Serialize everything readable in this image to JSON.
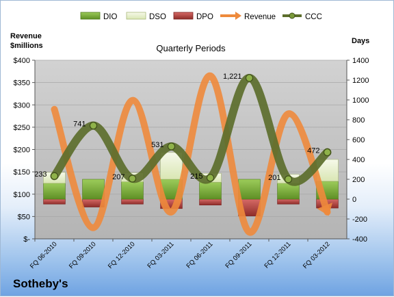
{
  "chart_data": {
    "type": "combo-bar-line",
    "title": "Quarterly Periods",
    "company": "Sotheby's",
    "left_axis_label_line1": "Revenue",
    "left_axis_label_line2": "$millions",
    "right_axis_label": "Days",
    "left_ylim": [
      0,
      400
    ],
    "left_ticks": [
      "$-",
      "$50",
      "$100",
      "$150",
      "$200",
      "$250",
      "$300",
      "$350",
      "$400"
    ],
    "right_ylim": [
      -400,
      1400
    ],
    "right_ticks": [
      "-400",
      "-200",
      "0",
      "200",
      "400",
      "600",
      "800",
      "1000",
      "1200",
      "1400"
    ],
    "categories": [
      "FQ 06-2010",
      "FQ 09-2010",
      "FQ 12-2010",
      "FQ 03-2011",
      "FQ 06-2011",
      "FQ 09-2011",
      "FQ 12-2011",
      "FQ 03-2012"
    ],
    "legend": [
      "DIO",
      "DSO",
      "DPO",
      "Revenue",
      "CCC"
    ],
    "series": {
      "DIO": [
        160,
        200,
        175,
        200,
        170,
        200,
        160,
        180
      ],
      "DSO": [
        110,
        0,
        90,
        270,
        90,
        0,
        90,
        220
      ],
      "DPO": [
        -50,
        -80,
        -50,
        -95,
        -60,
        -170,
        -50,
        -90
      ],
      "Revenue": [
        290,
        25,
        310,
        60,
        365,
        15,
        280,
        60
      ],
      "CCC": [
        233,
        741,
        207,
        531,
        215,
        1221,
        201,
        472
      ]
    },
    "ccc_labels": [
      "233",
      "741",
      "207",
      "531",
      "215",
      "1,221",
      "201",
      "472"
    ],
    "colors": {
      "DIO": "#7bb23a",
      "DSO": "#e6efc8",
      "DPO": "#c0504d",
      "Revenue": "#ee8a3c",
      "CCC": "#5c6e2c",
      "plot_bg": "#bfbfbf",
      "bottom_band": "#5a8fd8"
    }
  }
}
